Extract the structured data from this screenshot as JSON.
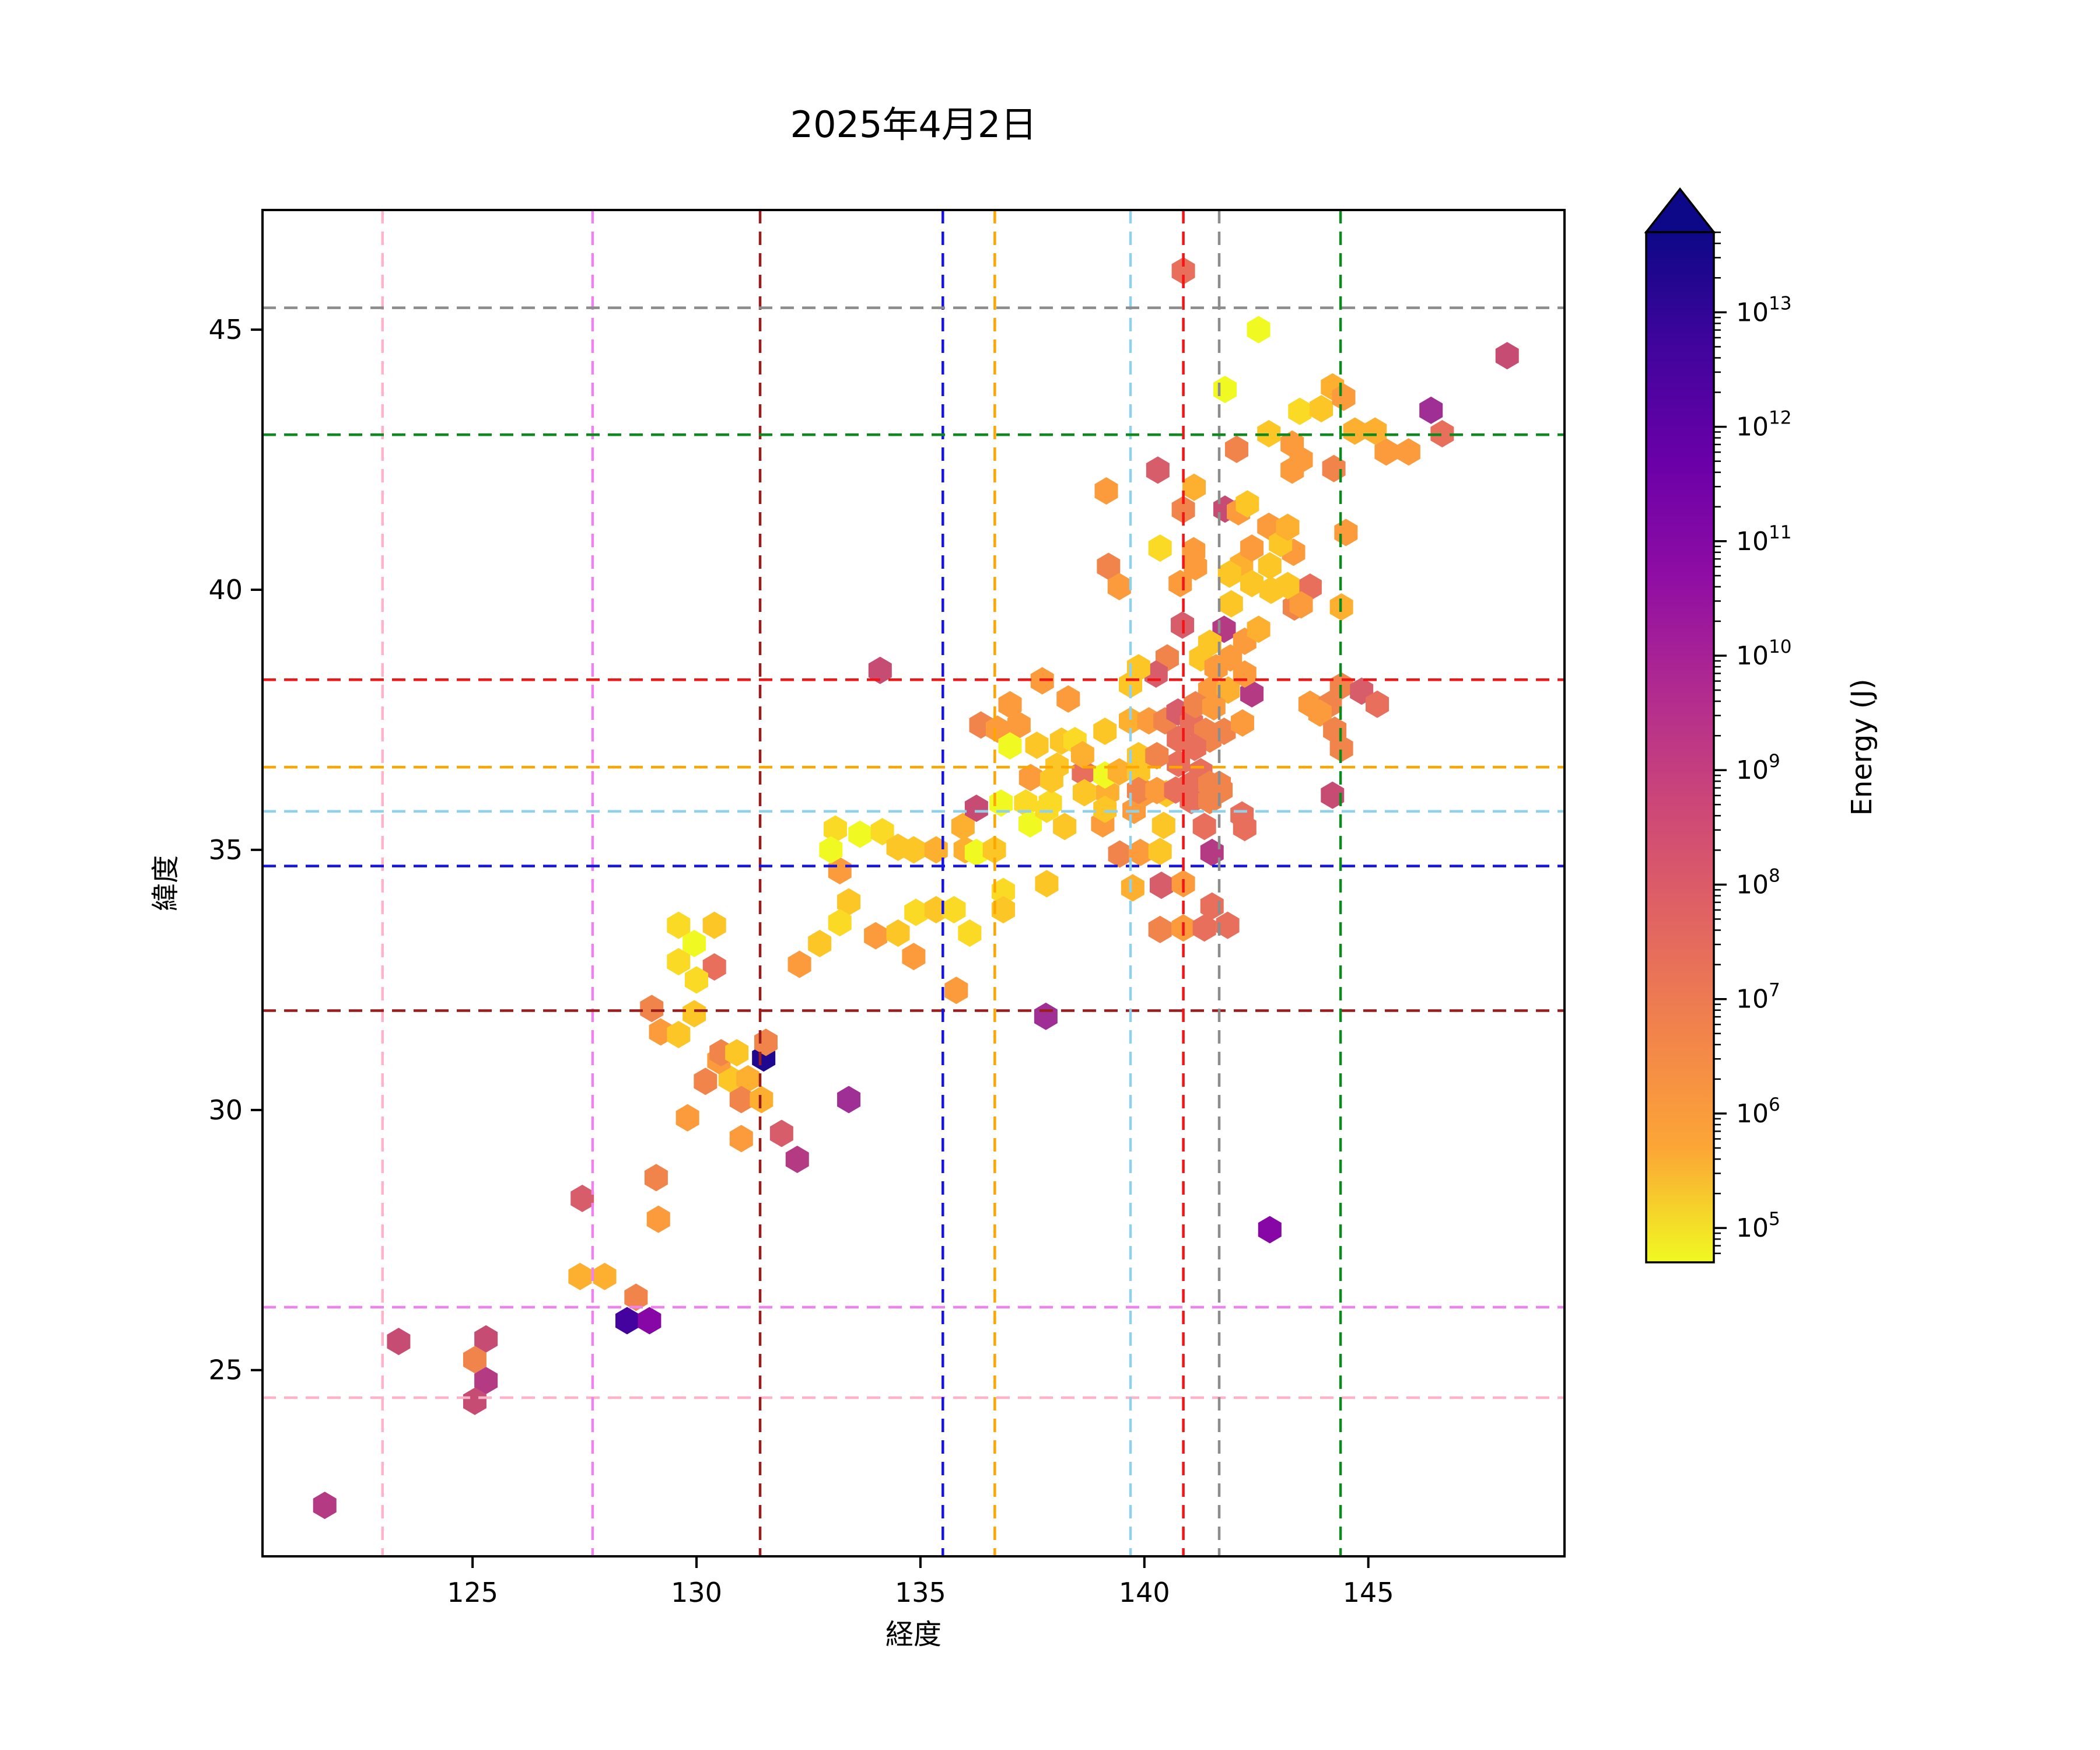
{
  "title": "2025年4月2日",
  "axes": {
    "xlabel": "経度",
    "ylabel": "緯度",
    "xticks": [
      125,
      130,
      135,
      140,
      145
    ],
    "yticks": [
      25,
      30,
      35,
      40,
      45
    ],
    "xlim": [
      120.31,
      149.38
    ],
    "ylim": [
      21.42,
      47.3
    ]
  },
  "reference_lines": [
    {
      "name": "pink",
      "color": "#ffb3c8",
      "lon": 122.99,
      "lat": 24.47
    },
    {
      "name": "violet",
      "color": "#ee82ee",
      "lon": 127.68,
      "lat": 26.21
    },
    {
      "name": "darkred",
      "color": "#9b1c1c",
      "lon": 131.42,
      "lat": 31.91
    },
    {
      "name": "blue",
      "color": "#1414e0",
      "lon": 135.5,
      "lat": 34.69
    },
    {
      "name": "orange",
      "color": "#ffa500",
      "lon": 136.66,
      "lat": 36.59
    },
    {
      "name": "skyblue",
      "color": "#8fd0ea",
      "lon": 139.69,
      "lat": 35.74
    },
    {
      "name": "red",
      "color": "#f51414",
      "lon": 140.87,
      "lat": 38.27
    },
    {
      "name": "gray",
      "color": "#8c8c8c",
      "lon": 141.67,
      "lat": 45.42
    },
    {
      "name": "green",
      "color": "#0c8a1d",
      "lon": 144.38,
      "lat": 42.98
    }
  ],
  "colorbar": {
    "label": "Energy (J)",
    "tick_exponents": [
      5,
      6,
      7,
      8,
      9,
      10,
      11,
      12,
      13
    ],
    "log_min_exp": 4.7,
    "log_max_exp": 13.7,
    "extend_max": true,
    "gradient_top_to_bottom": [
      "#0d0887",
      "#41049d",
      "#6a00a8",
      "#8f0da4",
      "#b12a90",
      "#cc4778",
      "#e16462",
      "#f2844b",
      "#fca636",
      "#f0f921"
    ]
  },
  "chart_data": {
    "type": "hexbin",
    "title": "2025年4月2日",
    "xlabel": "経度",
    "ylabel": "緯度",
    "value_label": "Energy (J)",
    "scale": "log10",
    "palette": [
      "#f0f921",
      "#fada24",
      "#fcc627",
      "#fdb030",
      "#fb9b3c",
      "#f1844b",
      "#e76f5b",
      "#d75d6a",
      "#c74c74",
      "#b43a84",
      "#a02f95",
      "#8606a6",
      "#6701a8",
      "#44039e",
      "#1f0890"
    ],
    "palette_energy_exponents": [
      5,
      5.5,
      6,
      6.5,
      7,
      7.5,
      8,
      8.5,
      9,
      9.5,
      10,
      11,
      12,
      13,
      13.7
    ],
    "points_format": [
      "longitude",
      "latitude",
      "palette_index"
    ],
    "points": [
      [
        121.7,
        22.4,
        9
      ],
      [
        123.35,
        25.55,
        8
      ],
      [
        125.3,
        25.6,
        8
      ],
      [
        125.05,
        25.2,
        5
      ],
      [
        125.3,
        24.8,
        9
      ],
      [
        125.05,
        24.4,
        8
      ],
      [
        127.4,
        26.8,
        3
      ],
      [
        127.95,
        26.8,
        3
      ],
      [
        128.65,
        26.4,
        5
      ],
      [
        128.45,
        25.95,
        13
      ],
      [
        128.95,
        25.95,
        11
      ],
      [
        127.45,
        28.3,
        7
      ],
      [
        129.1,
        28.7,
        5
      ],
      [
        129.15,
        27.9,
        4
      ],
      [
        142.8,
        27.7,
        11
      ],
      [
        129.8,
        29.85,
        4
      ],
      [
        131.0,
        29.45,
        4
      ],
      [
        131.9,
        29.55,
        7
      ],
      [
        132.25,
        29.05,
        9
      ],
      [
        133.4,
        30.2,
        10
      ],
      [
        130.2,
        30.55,
        5
      ],
      [
        130.75,
        30.6,
        2
      ],
      [
        131.15,
        30.6,
        3
      ],
      [
        131.0,
        30.2,
        5
      ],
      [
        131.45,
        30.2,
        3
      ],
      [
        130.5,
        30.95,
        4
      ],
      [
        131.5,
        31.0,
        14
      ],
      [
        131.55,
        31.3,
        5
      ],
      [
        130.55,
        31.1,
        5
      ],
      [
        130.9,
        31.1,
        2
      ],
      [
        129.0,
        31.95,
        5
      ],
      [
        129.95,
        31.85,
        2
      ],
      [
        129.2,
        31.5,
        4
      ],
      [
        129.6,
        31.45,
        2
      ],
      [
        129.6,
        33.55,
        1
      ],
      [
        130.4,
        33.55,
        2
      ],
      [
        129.95,
        33.2,
        0
      ],
      [
        129.6,
        32.85,
        1
      ],
      [
        130.4,
        32.75,
        6
      ],
      [
        130.0,
        32.5,
        1
      ],
      [
        133.2,
        34.6,
        4
      ],
      [
        133.4,
        34.0,
        2
      ],
      [
        133.2,
        33.6,
        1
      ],
      [
        132.75,
        33.2,
        2
      ],
      [
        132.3,
        32.8,
        4
      ],
      [
        134.9,
        33.8,
        1
      ],
      [
        135.35,
        33.85,
        2
      ],
      [
        135.75,
        33.85,
        1
      ],
      [
        134.0,
        33.35,
        4
      ],
      [
        134.5,
        33.4,
        2
      ],
      [
        136.1,
        33.4,
        1
      ],
      [
        134.85,
        32.95,
        4
      ],
      [
        136.85,
        34.2,
        1
      ],
      [
        136.85,
        33.85,
        2
      ],
      [
        135.8,
        32.3,
        4
      ],
      [
        133.1,
        35.4,
        1
      ],
      [
        133.65,
        35.3,
        0
      ],
      [
        134.15,
        35.35,
        1
      ],
      [
        133.0,
        35.0,
        0
      ],
      [
        134.5,
        35.05,
        2
      ],
      [
        134.85,
        35.0,
        2
      ],
      [
        135.35,
        35.0,
        3
      ],
      [
        136.0,
        35.0,
        3
      ],
      [
        136.25,
        34.95,
        0
      ],
      [
        136.65,
        35.0,
        2
      ],
      [
        135.95,
        35.45,
        3
      ],
      [
        136.25,
        35.8,
        8
      ],
      [
        136.8,
        35.9,
        0
      ],
      [
        137.35,
        35.9,
        1
      ],
      [
        137.9,
        35.9,
        1
      ],
      [
        137.45,
        35.5,
        0
      ],
      [
        138.22,
        35.45,
        2
      ],
      [
        139.07,
        35.5,
        4
      ],
      [
        140.43,
        35.47,
        2
      ],
      [
        141.34,
        35.45,
        6
      ],
      [
        142.24,
        35.43,
        6
      ],
      [
        137.82,
        35.78,
        1
      ],
      [
        139.77,
        35.76,
        4
      ],
      [
        142.18,
        35.67,
        6
      ],
      [
        139.18,
        36.1,
        3
      ],
      [
        140.03,
        36.1,
        4
      ],
      [
        140.49,
        36.08,
        2
      ],
      [
        140.87,
        36.17,
        4
      ],
      [
        141.71,
        36.15,
        5
      ],
      [
        144.2,
        36.05,
        8
      ],
      [
        139.45,
        34.92,
        5
      ],
      [
        139.91,
        34.95,
        4
      ],
      [
        140.35,
        34.97,
        2
      ],
      [
        141.51,
        34.95,
        9
      ],
      [
        137.82,
        34.35,
        2
      ],
      [
        139.74,
        34.27,
        3
      ],
      [
        140.38,
        34.32,
        7
      ],
      [
        140.87,
        34.35,
        4
      ],
      [
        141.51,
        33.92,
        6
      ],
      [
        140.35,
        33.47,
        5
      ],
      [
        140.87,
        33.5,
        4
      ],
      [
        141.34,
        33.5,
        6
      ],
      [
        141.86,
        33.55,
        6
      ],
      [
        137.8,
        31.8,
        10
      ],
      [
        137.0,
        37.79,
        4
      ],
      [
        137.72,
        38.25,
        4
      ],
      [
        138.3,
        37.9,
        4
      ],
      [
        136.35,
        37.4,
        5
      ],
      [
        136.72,
        37.32,
        4
      ],
      [
        137.2,
        37.4,
        4
      ],
      [
        137.0,
        37.0,
        0
      ],
      [
        137.6,
        37.01,
        2
      ],
      [
        138.15,
        37.09,
        2
      ],
      [
        138.45,
        37.1,
        1
      ],
      [
        138.05,
        36.61,
        2
      ],
      [
        137.46,
        36.39,
        4
      ],
      [
        137.93,
        36.35,
        2
      ],
      [
        138.64,
        36.48,
        6
      ],
      [
        139.12,
        36.44,
        0
      ],
      [
        139.44,
        36.5,
        3
      ],
      [
        139.87,
        36.5,
        2
      ],
      [
        140.76,
        36.66,
        6
      ],
      [
        141.26,
        36.5,
        6
      ],
      [
        138.66,
        36.1,
        2
      ],
      [
        139.12,
        35.78,
        2
      ],
      [
        139.87,
        36.14,
        5
      ],
      [
        140.28,
        36.14,
        4
      ],
      [
        140.7,
        36.15,
        6
      ],
      [
        141.05,
        36.26,
        6
      ],
      [
        141.05,
        35.95,
        6
      ],
      [
        141.46,
        36.26,
        5
      ],
      [
        141.46,
        35.95,
        5
      ],
      [
        141.67,
        36.26,
        5
      ],
      [
        138.62,
        36.83,
        3
      ],
      [
        139.69,
        37.48,
        3
      ],
      [
        140.1,
        37.48,
        4
      ],
      [
        140.46,
        37.48,
        5
      ],
      [
        139.12,
        37.28,
        2
      ],
      [
        140.75,
        37.65,
        7
      ],
      [
        141.05,
        37.44,
        6
      ],
      [
        141.37,
        37.28,
        5
      ],
      [
        141.78,
        37.28,
        5
      ],
      [
        142.19,
        37.44,
        4
      ],
      [
        140.76,
        37.13,
        6
      ],
      [
        141.46,
        37.13,
        5
      ],
      [
        141.12,
        36.97,
        6
      ],
      [
        139.87,
        36.81,
        2
      ],
      [
        140.28,
        36.81,
        5
      ],
      [
        141.46,
        38.07,
        4
      ],
      [
        141.87,
        38.07,
        3
      ],
      [
        142.4,
        38.0,
        9
      ],
      [
        141.14,
        37.79,
        5
      ],
      [
        141.55,
        37.75,
        4
      ],
      [
        143.7,
        37.8,
        4
      ],
      [
        144.15,
        37.8,
        5
      ],
      [
        144.4,
        38.15,
        5
      ],
      [
        144.85,
        38.05,
        7
      ],
      [
        145.2,
        37.8,
        6
      ],
      [
        143.92,
        37.63,
        4
      ],
      [
        144.25,
        37.3,
        5
      ],
      [
        144.4,
        36.95,
        5
      ],
      [
        140.51,
        38.69,
        5
      ],
      [
        140.26,
        38.38,
        7
      ],
      [
        139.87,
        38.5,
        2
      ],
      [
        139.69,
        38.18,
        2
      ],
      [
        141.26,
        38.69,
        2
      ],
      [
        141.6,
        38.5,
        4
      ],
      [
        141.92,
        38.69,
        4
      ],
      [
        142.24,
        38.38,
        4
      ],
      [
        134.1,
        38.45,
        8
      ],
      [
        140.85,
        39.32,
        7
      ],
      [
        141.78,
        39.24,
        9
      ],
      [
        141.46,
        38.97,
        2
      ],
      [
        142.24,
        39.01,
        4
      ],
      [
        142.55,
        39.24,
        3
      ],
      [
        139.2,
        40.45,
        5
      ],
      [
        139.44,
        40.06,
        4
      ],
      [
        141.14,
        40.44,
        4
      ],
      [
        140.8,
        40.12,
        4
      ],
      [
        142.17,
        40.48,
        3
      ],
      [
        142.8,
        40.46,
        2
      ],
      [
        142.4,
        40.12,
        2
      ],
      [
        142.83,
        39.99,
        2
      ],
      [
        143.7,
        40.05,
        6
      ],
      [
        143.35,
        39.67,
        5
      ],
      [
        141.94,
        39.73,
        2
      ],
      [
        144.4,
        39.67,
        3
      ],
      [
        143.5,
        39.71,
        4
      ],
      [
        143.2,
        40.08,
        2
      ],
      [
        143.33,
        40.72,
        4
      ],
      [
        140.35,
        40.8,
        1
      ],
      [
        141.1,
        40.75,
        4
      ],
      [
        142.4,
        40.8,
        4
      ],
      [
        141.9,
        40.3,
        2
      ],
      [
        139.15,
        41.9,
        4
      ],
      [
        141.11,
        41.97,
        3
      ],
      [
        140.87,
        41.54,
        5
      ],
      [
        141.8,
        41.55,
        8
      ],
      [
        142.1,
        41.5,
        4
      ],
      [
        142.3,
        41.65,
        2
      ],
      [
        142.78,
        41.22,
        4
      ],
      [
        143.04,
        40.89,
        2
      ],
      [
        140.3,
        42.3,
        7
      ],
      [
        143.2,
        41.2,
        3
      ],
      [
        144.5,
        41.1,
        4
      ],
      [
        140.87,
        46.13,
        6
      ],
      [
        142.55,
        45.0,
        0
      ],
      [
        141.8,
        43.85,
        0
      ],
      [
        143.47,
        43.43,
        1
      ],
      [
        143.95,
        43.48,
        2
      ],
      [
        144.2,
        43.9,
        3
      ],
      [
        144.45,
        43.7,
        4
      ],
      [
        142.78,
        43.0,
        2
      ],
      [
        144.7,
        43.05,
        3
      ],
      [
        145.15,
        43.05,
        3
      ],
      [
        145.4,
        42.65,
        4
      ],
      [
        145.9,
        42.65,
        4
      ],
      [
        146.4,
        43.45,
        10
      ],
      [
        146.65,
        43.0,
        6
      ],
      [
        148.1,
        44.5,
        8
      ],
      [
        142.06,
        42.7,
        5
      ],
      [
        143.3,
        42.8,
        4
      ],
      [
        143.5,
        42.5,
        4
      ],
      [
        144.23,
        42.33,
        5
      ],
      [
        143.3,
        42.3,
        4
      ]
    ]
  }
}
